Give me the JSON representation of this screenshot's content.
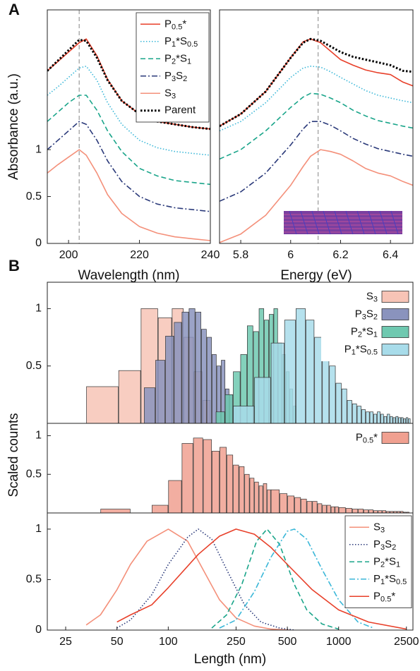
{
  "chart_data": [
    {
      "type": "line",
      "panel_label": "A",
      "ylabel": "Absorbance (a.u.)",
      "xlabel": "Wavelength (nm)",
      "x": [
        194,
        197,
        200,
        203,
        205,
        208,
        211,
        215,
        220,
        225,
        230,
        235,
        240
      ],
      "xlim": [
        194,
        240
      ],
      "xticks": [
        200,
        220,
        240
      ],
      "ylim": [
        0,
        2.49
      ],
      "yticks": [
        0,
        0.5,
        1
      ],
      "reference_line": 203,
      "legend": "upper right",
      "series": [
        {
          "name": "P0.5*",
          "color": "#e8402a",
          "style": "solid",
          "values": [
            1.84,
            1.94,
            2.04,
            2.14,
            2.18,
            2.0,
            1.75,
            1.52,
            1.38,
            1.3,
            1.27,
            1.24,
            1.22
          ]
        },
        {
          "name": "P1*S0.5",
          "color": "#3ab7d8",
          "style": "dotted",
          "values": [
            1.58,
            1.67,
            1.77,
            1.87,
            1.89,
            1.74,
            1.5,
            1.27,
            1.1,
            1.02,
            0.98,
            0.96,
            0.94
          ]
        },
        {
          "name": "P2*S1",
          "color": "#1aa58a",
          "style": "dashed",
          "values": [
            1.3,
            1.4,
            1.5,
            1.58,
            1.58,
            1.42,
            1.2,
            0.98,
            0.8,
            0.72,
            0.67,
            0.65,
            0.63
          ]
        },
        {
          "name": "P3S2",
          "color": "#2b3a7a",
          "style": "dashdot",
          "values": [
            1.0,
            1.1,
            1.2,
            1.3,
            1.27,
            1.1,
            0.88,
            0.66,
            0.5,
            0.42,
            0.38,
            0.36,
            0.34
          ]
        },
        {
          "name": "S3",
          "color": "#f4907a",
          "style": "solid",
          "values": [
            0.75,
            0.84,
            0.92,
            1.0,
            0.94,
            0.75,
            0.52,
            0.32,
            0.18,
            0.11,
            0.07,
            0.05,
            0.03
          ]
        },
        {
          "name": "Parent",
          "color": "#000000",
          "style": "bolddotted",
          "values": [
            1.84,
            1.95,
            2.06,
            2.17,
            2.16,
            1.98,
            1.74,
            1.52,
            1.38,
            1.3,
            1.27,
            1.24,
            1.22
          ]
        }
      ]
    },
    {
      "type": "line",
      "xlabel": "Energy (eV)",
      "x": [
        5.715,
        5.8,
        5.9,
        6.0,
        6.05,
        6.08,
        6.12,
        6.16,
        6.2,
        6.25,
        6.3,
        6.35,
        6.4,
        6.45,
        6.49
      ],
      "xlim": [
        5.715,
        6.49
      ],
      "xticks": [
        5.8,
        6,
        6.2,
        6.4
      ],
      "ylim": [
        0,
        2.49
      ],
      "reference_line": 6.11,
      "series": [
        {
          "color": "#e8402a",
          "style": "solid",
          "values": [
            1.25,
            1.38,
            1.62,
            1.98,
            2.15,
            2.18,
            2.14,
            2.05,
            1.96,
            1.9,
            1.85,
            1.82,
            1.8,
            1.72,
            1.68
          ]
        },
        {
          "color": "#3ab7d8",
          "style": "dotted",
          "values": [
            1.2,
            1.3,
            1.5,
            1.77,
            1.87,
            1.89,
            1.88,
            1.83,
            1.77,
            1.7,
            1.63,
            1.58,
            1.55,
            1.52,
            1.5
          ]
        },
        {
          "color": "#1aa58a",
          "style": "dashed",
          "values": [
            0.9,
            1.0,
            1.2,
            1.45,
            1.56,
            1.6,
            1.59,
            1.55,
            1.5,
            1.42,
            1.36,
            1.31,
            1.28,
            1.25,
            1.23
          ]
        },
        {
          "color": "#2b3a7a",
          "style": "dashdot",
          "values": [
            0.45,
            0.55,
            0.75,
            1.05,
            1.22,
            1.3,
            1.3,
            1.26,
            1.2,
            1.12,
            1.06,
            1.01,
            0.98,
            0.95,
            0.93
          ]
        },
        {
          "color": "#f4907a",
          "style": "solid",
          "values": [
            0.01,
            0.1,
            0.3,
            0.62,
            0.82,
            0.93,
            1.0,
            0.98,
            0.95,
            0.88,
            0.8,
            0.75,
            0.72,
            0.66,
            0.62
          ]
        },
        {
          "color": "#000000",
          "style": "bolddotted",
          "values": [
            1.25,
            1.38,
            1.62,
            1.98,
            2.14,
            2.18,
            2.16,
            2.1,
            2.04,
            1.99,
            1.96,
            1.93,
            1.9,
            1.84,
            1.83
          ]
        }
      ]
    },
    {
      "type": "histogram",
      "panel_label": "B",
      "ylabel": "Scaled counts",
      "log_x": true,
      "xlim": [
        19.5,
        2730
      ],
      "ylim": [
        0,
        1.23
      ],
      "yticks": [
        0.5,
        1
      ],
      "legend": "upper right",
      "series": [
        {
          "name": "S3",
          "color": "#f7c4b6",
          "bins": [
            33,
            51,
            69,
            87,
            105,
            123,
            141,
            159,
            177
          ],
          "values": [
            0.32,
            0.46,
            1.0,
            0.92,
            1.0,
            0.75,
            0.45,
            0.2
          ]
        },
        {
          "name": "P3S2",
          "color": "#8a93bd",
          "bins": [
            72,
            84,
            96,
            108,
            120,
            132,
            144,
            156,
            168,
            180,
            192,
            204,
            216,
            228,
            240,
            252
          ],
          "values": [
            0.31,
            0.55,
            0.76,
            0.88,
            0.97,
            1.0,
            0.97,
            0.82,
            0.75,
            0.6,
            0.5,
            0.55,
            0.3,
            0.25,
            0.15
          ]
        },
        {
          "name": "P2*S1",
          "color": "#6fc9b0",
          "bins": [
            190,
            215,
            240,
            265,
            290,
            315,
            340,
            365,
            390,
            415,
            440,
            465,
            490,
            515,
            540,
            565
          ],
          "values": [
            0.1,
            0.25,
            0.45,
            0.6,
            0.85,
            0.8,
            1.0,
            0.9,
            0.95,
            1.0,
            0.7,
            0.6,
            0.45,
            0.3,
            0.15
          ]
        },
        {
          "name": "P1*S0.5",
          "color": "#a8dcea",
          "bins": [
            240,
            320,
            400,
            480,
            560,
            640,
            720,
            800,
            880,
            960,
            1040,
            1120,
            1200,
            1280,
            1360,
            1440,
            1520,
            1600,
            1680,
            1760,
            1840,
            1920,
            2000,
            2080,
            2160,
            2240,
            2320,
            2400,
            2480,
            2560,
            2640
          ],
          "values": [
            0.15,
            0.4,
            0.7,
            0.9,
            1.0,
            0.9,
            0.75,
            0.6,
            0.5,
            0.35,
            0.3,
            0.2,
            0.17,
            0.15,
            0.12,
            0.1,
            0.1,
            0.08,
            0.1,
            0.08,
            0.06,
            0.08,
            0.06,
            0.05,
            0.06,
            0.05,
            0.05,
            0.04,
            0.05,
            0.04
          ]
        }
      ]
    },
    {
      "type": "histogram",
      "log_x": true,
      "xlim": [
        19.5,
        2730
      ],
      "ylim": [
        0,
        1.16
      ],
      "yticks": [
        0.5,
        1
      ],
      "legend": "upper right",
      "series": [
        {
          "name": "P0.5*",
          "color": "#f0a090",
          "bins": [
            40,
            60,
            80,
            100,
            120,
            140,
            160,
            180,
            200,
            220,
            240,
            260,
            280,
            300,
            320,
            340,
            360,
            380,
            400,
            450,
            500,
            550,
            600,
            650,
            700,
            750,
            800,
            850,
            900,
            950,
            1000,
            1100,
            1200,
            1300,
            1400,
            1500,
            1600,
            1700,
            1800,
            1900,
            2000,
            2100,
            2200,
            2300,
            2400,
            2500,
            2600
          ],
          "values": [
            0.05,
            0,
            0.1,
            0.42,
            0.9,
            0.97,
            0.95,
            0.8,
            0.85,
            0.75,
            0.62,
            0.6,
            0.5,
            0.45,
            0.4,
            0.35,
            0.38,
            0.3,
            0.3,
            0.25,
            0.22,
            0.2,
            0.18,
            0.15,
            0.15,
            0.12,
            0.1,
            0.1,
            0.08,
            0.08,
            0.07,
            0.06,
            0.05,
            0.05,
            0.04,
            0.04,
            0.03,
            0.03,
            0.03,
            0.02,
            0.02,
            0.02,
            0.02,
            0.02,
            0.01,
            0.01
          ]
        }
      ]
    },
    {
      "type": "line",
      "xlabel": "Length (nm)",
      "log_x": true,
      "xlim": [
        19.5,
        2730
      ],
      "xticks": [
        25,
        50,
        100,
        250,
        500,
        1000,
        2500
      ],
      "ylim": [
        0,
        1.16
      ],
      "yticks": [
        0,
        0.5,
        1
      ],
      "legend": "upper right",
      "series": [
        {
          "name": "S3",
          "color": "#f4907a",
          "style": "solid",
          "x": [
            33,
            40,
            50,
            60,
            75,
            100,
            130,
            160,
            200,
            250,
            320,
            400,
            520
          ],
          "values": [
            0.05,
            0.15,
            0.4,
            0.65,
            0.88,
            1.0,
            0.88,
            0.6,
            0.3,
            0.12,
            0.04,
            0.01,
            0
          ]
        },
        {
          "name": "P3S2",
          "color": "#2b3a7a",
          "style": "dotted",
          "x": [
            50,
            60,
            80,
            100,
            130,
            150,
            180,
            220,
            280,
            350,
            450,
            550
          ],
          "values": [
            0.02,
            0.1,
            0.35,
            0.65,
            0.92,
            1.0,
            0.9,
            0.6,
            0.25,
            0.08,
            0.02,
            0
          ]
        },
        {
          "name": "P2*S1",
          "color": "#1aa58a",
          "style": "dashed",
          "x": [
            180,
            220,
            270,
            330,
            380,
            450,
            550,
            650,
            800,
            1000
          ],
          "values": [
            0.02,
            0.15,
            0.45,
            0.88,
            1.0,
            0.85,
            0.45,
            0.2,
            0.06,
            0.01
          ]
        },
        {
          "name": "P1*S0.5",
          "color": "#3ab7d8",
          "style": "dashdot",
          "x": [
            200,
            250,
            320,
            400,
            500,
            550,
            650,
            800,
            1000,
            1300,
            1600
          ],
          "values": [
            0.02,
            0.1,
            0.38,
            0.72,
            0.98,
            1.0,
            0.9,
            0.6,
            0.3,
            0.08,
            0.02
          ]
        },
        {
          "name": "P0.5*",
          "color": "#e8402a",
          "style": "solid",
          "x": [
            50,
            60,
            80,
            100,
            150,
            200,
            250,
            320,
            400,
            500,
            700,
            1000,
            1500,
            2500
          ],
          "values": [
            0.08,
            0.15,
            0.25,
            0.42,
            0.75,
            0.93,
            1.0,
            0.95,
            0.82,
            0.65,
            0.4,
            0.2,
            0.08,
            0.01
          ]
        }
      ]
    }
  ]
}
